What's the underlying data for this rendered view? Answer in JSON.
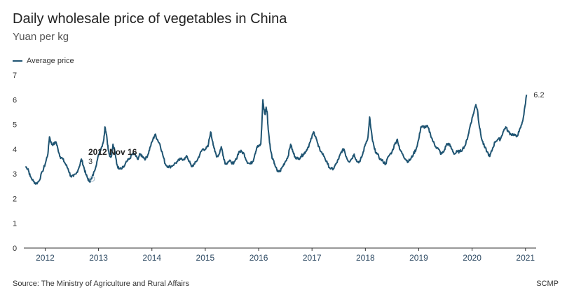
{
  "chart_data": {
    "type": "line",
    "title": "Daily wholesale price of vegetables in China",
    "subtitle": "Yuan per kg",
    "xlabel": "",
    "ylabel": "",
    "ylim": [
      0,
      7
    ],
    "yticks": [
      "0",
      "1",
      "2",
      "3",
      "4",
      "5",
      "6",
      "7"
    ],
    "xlim": [
      2011.6,
      2021.2
    ],
    "xticks": [
      "2012",
      "2013",
      "2014",
      "2015",
      "2016",
      "2017",
      "2018",
      "2019",
      "2020",
      "2021"
    ],
    "series": [
      {
        "name": "Average price",
        "color": "#1f5472",
        "points": [
          [
            2011.63,
            3.3
          ],
          [
            2011.68,
            3.2
          ],
          [
            2011.72,
            2.9
          ],
          [
            2011.78,
            2.7
          ],
          [
            2011.83,
            2.6
          ],
          [
            2011.88,
            2.7
          ],
          [
            2011.95,
            3.1
          ],
          [
            2012.0,
            3.4
          ],
          [
            2012.05,
            3.8
          ],
          [
            2012.08,
            4.5
          ],
          [
            2012.12,
            4.2
          ],
          [
            2012.16,
            4.2
          ],
          [
            2012.2,
            4.3
          ],
          [
            2012.24,
            4.0
          ],
          [
            2012.28,
            3.7
          ],
          [
            2012.33,
            3.6
          ],
          [
            2012.38,
            3.4
          ],
          [
            2012.43,
            3.2
          ],
          [
            2012.48,
            2.9
          ],
          [
            2012.53,
            2.9
          ],
          [
            2012.58,
            3.0
          ],
          [
            2012.64,
            3.3
          ],
          [
            2012.68,
            3.6
          ],
          [
            2012.72,
            3.3
          ],
          [
            2012.76,
            3.0
          ],
          [
            2012.8,
            2.8
          ],
          [
            2012.83,
            2.7
          ],
          [
            2012.87,
            2.8
          ],
          [
            2012.92,
            3.1
          ],
          [
            2012.97,
            3.5
          ],
          [
            2013.02,
            3.9
          ],
          [
            2013.06,
            4.1
          ],
          [
            2013.1,
            4.4
          ],
          [
            2013.12,
            4.9
          ],
          [
            2013.15,
            4.6
          ],
          [
            2013.18,
            4.0
          ],
          [
            2013.21,
            3.7
          ],
          [
            2013.24,
            3.7
          ],
          [
            2013.27,
            4.2
          ],
          [
            2013.3,
            4.0
          ],
          [
            2013.34,
            3.4
          ],
          [
            2013.38,
            3.2
          ],
          [
            2013.43,
            3.2
          ],
          [
            2013.48,
            3.3
          ],
          [
            2013.53,
            3.5
          ],
          [
            2013.58,
            3.6
          ],
          [
            2013.63,
            3.8
          ],
          [
            2013.68,
            3.8
          ],
          [
            2013.73,
            3.6
          ],
          [
            2013.78,
            3.8
          ],
          [
            2013.83,
            3.7
          ],
          [
            2013.88,
            3.6
          ],
          [
            2013.93,
            3.8
          ],
          [
            2013.97,
            4.1
          ],
          [
            2014.02,
            4.4
          ],
          [
            2014.06,
            4.6
          ],
          [
            2014.1,
            4.4
          ],
          [
            2014.15,
            4.2
          ],
          [
            2014.2,
            3.8
          ],
          [
            2014.25,
            3.4
          ],
          [
            2014.3,
            3.3
          ],
          [
            2014.36,
            3.3
          ],
          [
            2014.42,
            3.4
          ],
          [
            2014.48,
            3.5
          ],
          [
            2014.54,
            3.6
          ],
          [
            2014.6,
            3.6
          ],
          [
            2014.66,
            3.7
          ],
          [
            2014.7,
            3.5
          ],
          [
            2014.74,
            3.3
          ],
          [
            2014.8,
            3.4
          ],
          [
            2014.86,
            3.6
          ],
          [
            2014.9,
            3.8
          ],
          [
            2014.95,
            4.0
          ],
          [
            2015.0,
            4.0
          ],
          [
            2015.05,
            4.1
          ],
          [
            2015.1,
            4.7
          ],
          [
            2015.14,
            4.3
          ],
          [
            2015.18,
            3.9
          ],
          [
            2015.22,
            3.7
          ],
          [
            2015.26,
            3.8
          ],
          [
            2015.3,
            4.1
          ],
          [
            2015.34,
            3.7
          ],
          [
            2015.38,
            3.4
          ],
          [
            2015.43,
            3.5
          ],
          [
            2015.48,
            3.5
          ],
          [
            2015.53,
            3.4
          ],
          [
            2015.58,
            3.6
          ],
          [
            2015.63,
            3.9
          ],
          [
            2015.68,
            3.9
          ],
          [
            2015.73,
            3.8
          ],
          [
            2015.78,
            3.5
          ],
          [
            2015.84,
            3.4
          ],
          [
            2015.89,
            3.5
          ],
          [
            2015.93,
            3.8
          ],
          [
            2015.97,
            4.1
          ],
          [
            2016.0,
            4.1
          ],
          [
            2016.04,
            4.2
          ],
          [
            2016.06,
            5.0
          ],
          [
            2016.08,
            6.0
          ],
          [
            2016.1,
            5.6
          ],
          [
            2016.12,
            5.4
          ],
          [
            2016.14,
            5.7
          ],
          [
            2016.16,
            5.5
          ],
          [
            2016.18,
            4.8
          ],
          [
            2016.22,
            4.0
          ],
          [
            2016.26,
            3.6
          ],
          [
            2016.3,
            3.4
          ],
          [
            2016.35,
            3.1
          ],
          [
            2016.4,
            3.1
          ],
          [
            2016.45,
            3.3
          ],
          [
            2016.5,
            3.5
          ],
          [
            2016.55,
            3.7
          ],
          [
            2016.6,
            4.2
          ],
          [
            2016.64,
            3.9
          ],
          [
            2016.68,
            3.7
          ],
          [
            2016.74,
            3.6
          ],
          [
            2016.79,
            3.7
          ],
          [
            2016.84,
            3.8
          ],
          [
            2016.88,
            3.9
          ],
          [
            2016.93,
            4.1
          ],
          [
            2016.97,
            4.3
          ],
          [
            2017.03,
            4.7
          ],
          [
            2017.07,
            4.5
          ],
          [
            2017.12,
            4.1
          ],
          [
            2017.17,
            3.9
          ],
          [
            2017.23,
            3.7
          ],
          [
            2017.29,
            3.4
          ],
          [
            2017.35,
            3.2
          ],
          [
            2017.4,
            3.2
          ],
          [
            2017.45,
            3.4
          ],
          [
            2017.5,
            3.6
          ],
          [
            2017.55,
            3.9
          ],
          [
            2017.6,
            4.0
          ],
          [
            2017.64,
            3.7
          ],
          [
            2017.69,
            3.5
          ],
          [
            2017.74,
            3.6
          ],
          [
            2017.79,
            3.8
          ],
          [
            2017.84,
            3.5
          ],
          [
            2017.9,
            3.5
          ],
          [
            2017.95,
            3.8
          ],
          [
            2018.0,
            4.2
          ],
          [
            2018.05,
            4.5
          ],
          [
            2018.08,
            5.3
          ],
          [
            2018.1,
            4.9
          ],
          [
            2018.13,
            4.4
          ],
          [
            2018.17,
            4.0
          ],
          [
            2018.22,
            3.8
          ],
          [
            2018.28,
            3.6
          ],
          [
            2018.33,
            3.5
          ],
          [
            2018.38,
            3.4
          ],
          [
            2018.43,
            3.7
          ],
          [
            2018.5,
            3.9
          ],
          [
            2018.55,
            4.2
          ],
          [
            2018.6,
            4.4
          ],
          [
            2018.64,
            4.0
          ],
          [
            2018.7,
            3.8
          ],
          [
            2018.75,
            3.6
          ],
          [
            2018.8,
            3.5
          ],
          [
            2018.85,
            3.6
          ],
          [
            2018.9,
            3.8
          ],
          [
            2018.95,
            4.0
          ],
          [
            2019.0,
            4.4
          ],
          [
            2019.04,
            4.9
          ],
          [
            2019.08,
            4.9
          ],
          [
            2019.12,
            4.9
          ],
          [
            2019.17,
            4.9
          ],
          [
            2019.22,
            4.6
          ],
          [
            2019.27,
            4.3
          ],
          [
            2019.32,
            4.1
          ],
          [
            2019.37,
            4.0
          ],
          [
            2019.42,
            3.8
          ],
          [
            2019.47,
            3.9
          ],
          [
            2019.52,
            4.2
          ],
          [
            2019.57,
            4.2
          ],
          [
            2019.62,
            4.0
          ],
          [
            2019.67,
            3.8
          ],
          [
            2019.72,
            3.9
          ],
          [
            2019.77,
            3.9
          ],
          [
            2019.82,
            4.0
          ],
          [
            2019.88,
            4.2
          ],
          [
            2019.93,
            4.6
          ],
          [
            2019.97,
            5.0
          ],
          [
            2020.02,
            5.4
          ],
          [
            2020.07,
            5.8
          ],
          [
            2020.1,
            5.6
          ],
          [
            2020.13,
            5.0
          ],
          [
            2020.18,
            4.4
          ],
          [
            2020.23,
            4.1
          ],
          [
            2020.28,
            3.9
          ],
          [
            2020.33,
            3.7
          ],
          [
            2020.38,
            4.0
          ],
          [
            2020.43,
            4.3
          ],
          [
            2020.48,
            4.4
          ],
          [
            2020.53,
            4.4
          ],
          [
            2020.58,
            4.7
          ],
          [
            2020.63,
            4.9
          ],
          [
            2020.68,
            4.7
          ],
          [
            2020.73,
            4.6
          ],
          [
            2020.78,
            4.6
          ],
          [
            2020.83,
            4.5
          ],
          [
            2020.88,
            4.7
          ],
          [
            2020.93,
            5.0
          ],
          [
            2020.97,
            5.4
          ],
          [
            2021.02,
            6.2
          ]
        ]
      }
    ],
    "annotation": {
      "date_label": "2012 Nov 16",
      "value_label": "3",
      "x": 2012.88,
      "y": 2.8
    },
    "end_label": "6.2"
  },
  "footer": {
    "source": "Source: The Ministry of Agriculture and Rural Affairs",
    "brand": "SCMP"
  }
}
